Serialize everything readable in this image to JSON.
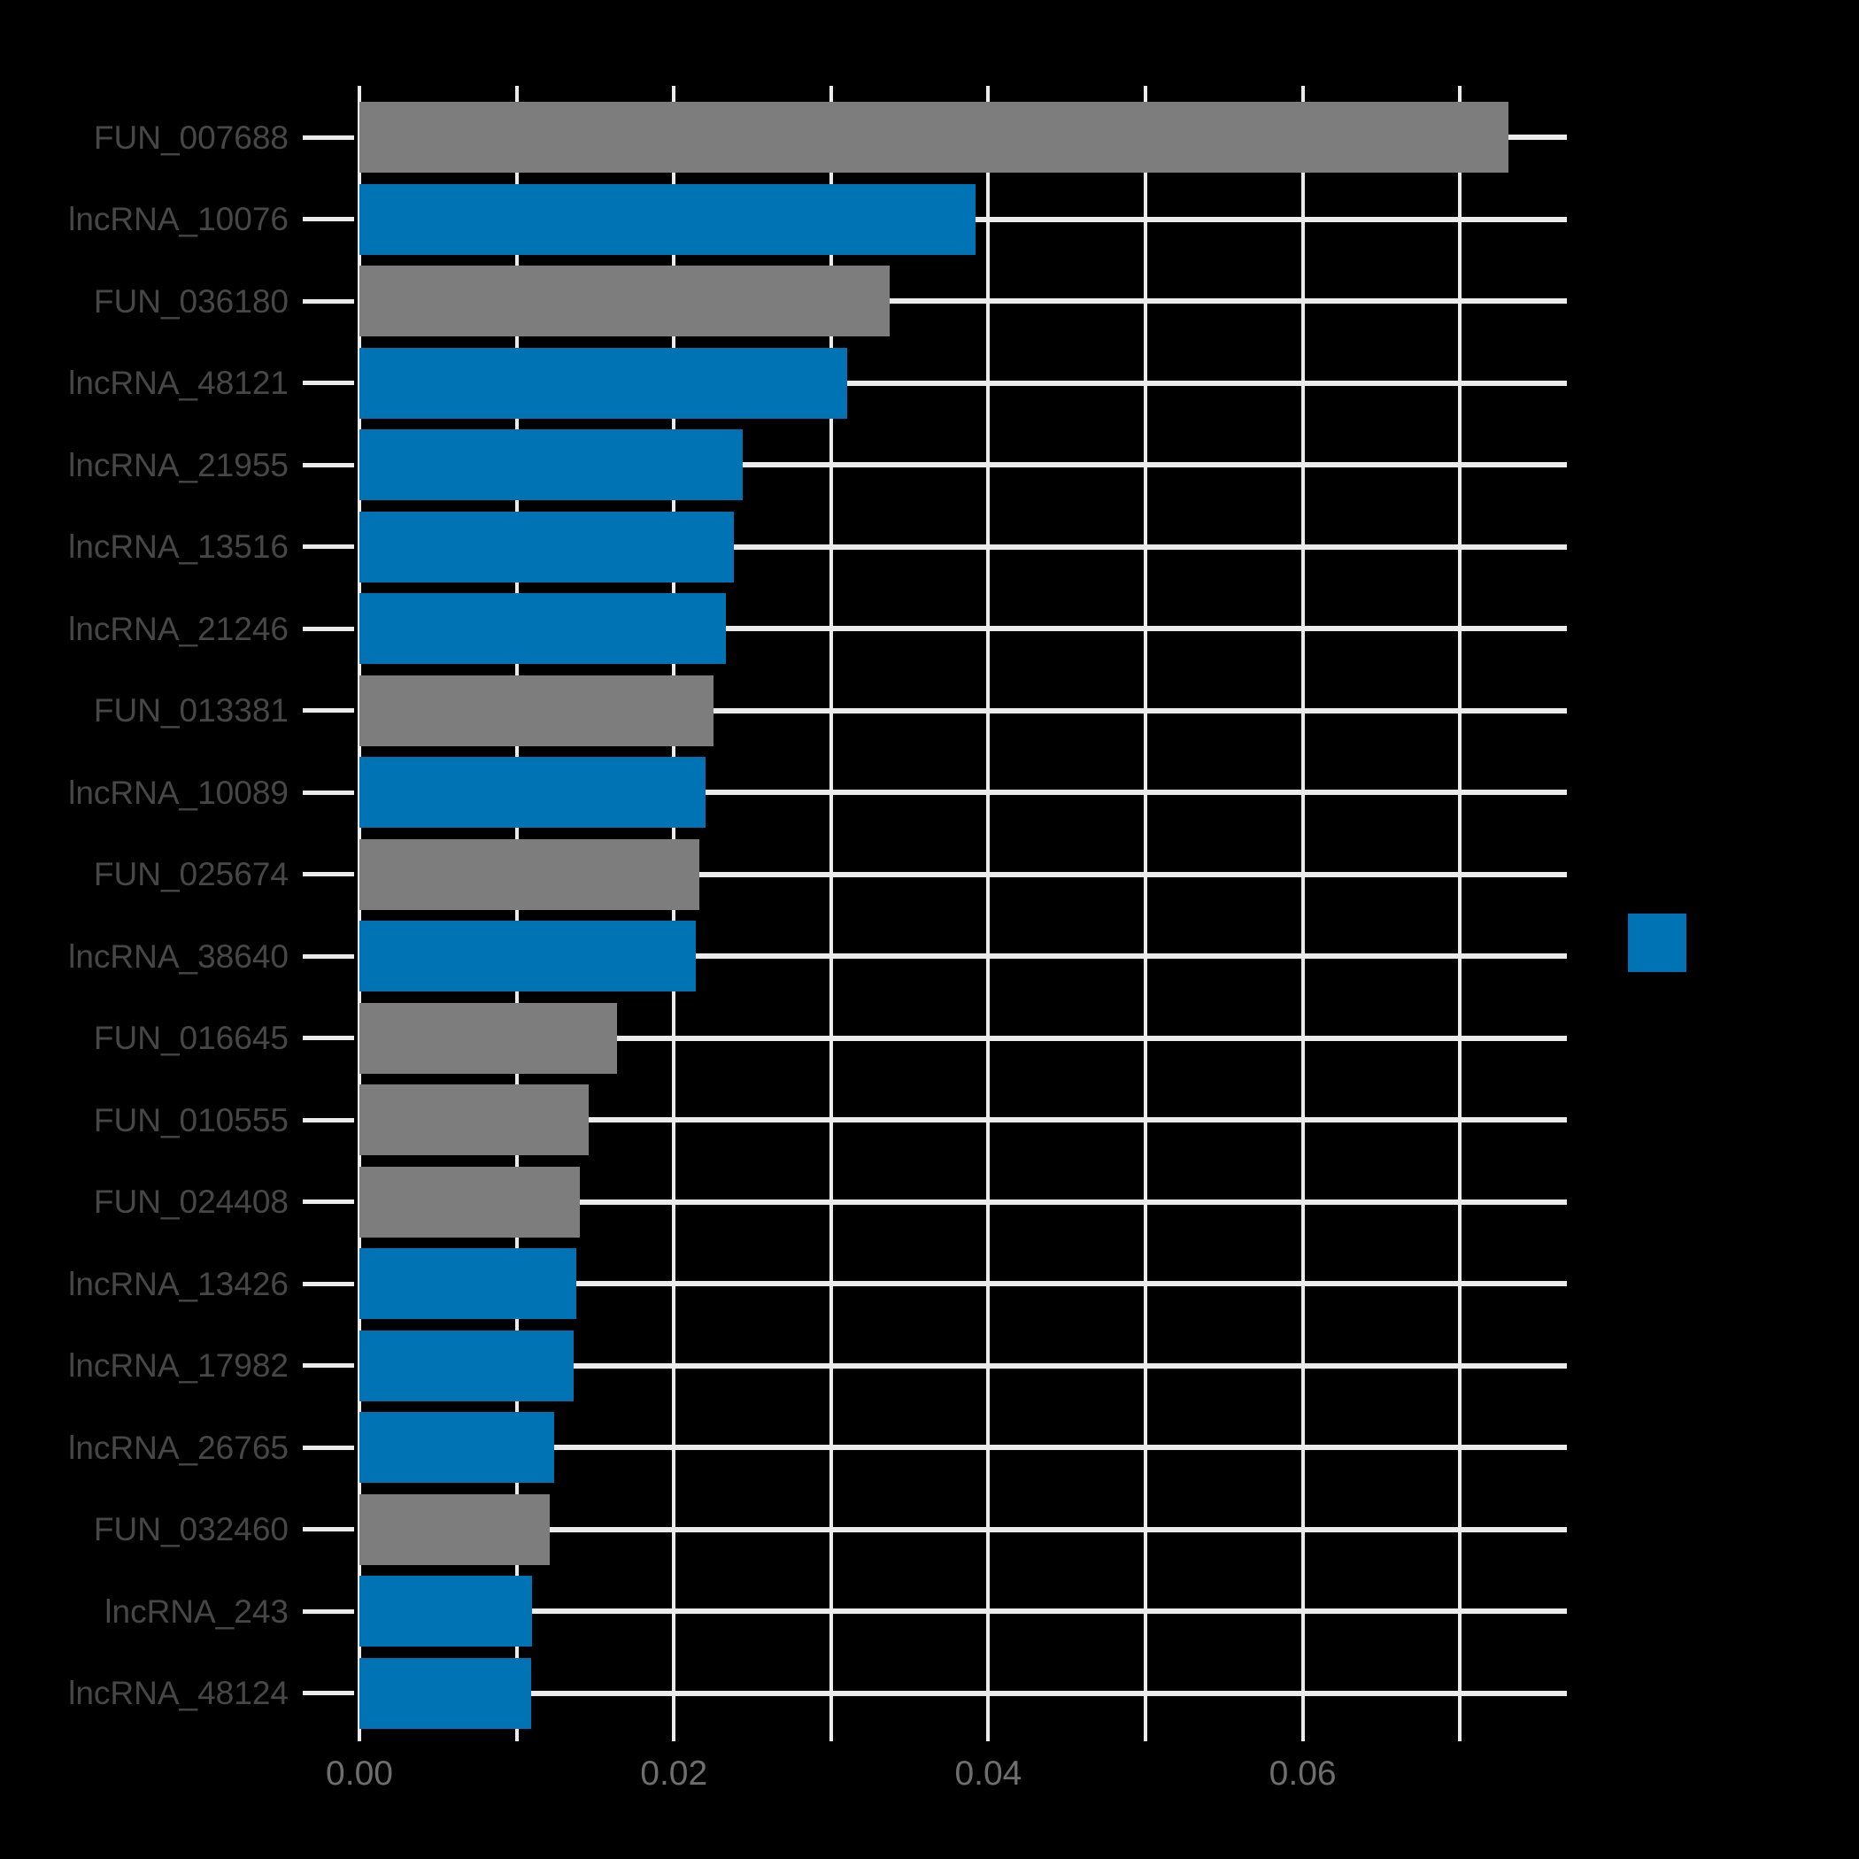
{
  "chart_data": {
    "type": "bar",
    "orientation": "horizontal",
    "title": "",
    "xlabel": "",
    "ylabel": "",
    "xlim": [
      0,
      0.0768
    ],
    "x_gridline_values": [
      0,
      0.01,
      0.02,
      0.03,
      0.04,
      0.05,
      0.06,
      0.07
    ],
    "x_tick_values": [
      0,
      0.02,
      0.04,
      0.06
    ],
    "x_tick_labels": [
      "0.00",
      "0.02",
      "0.04",
      "0.06"
    ],
    "grid": true,
    "legend": {
      "position": "right-center",
      "entries": [
        {
          "label": "",
          "color_key": "blue"
        }
      ]
    },
    "palette": {
      "blue": "#0073B4",
      "gray": "#7D7D7D"
    },
    "colors": {
      "background": "#000000",
      "grid": "#EBEBEB",
      "y_label_text": "#474747",
      "x_label_text": "#6E6E6E"
    },
    "categories": [
      "FUN_007688",
      "lncRNA_10076",
      "FUN_036180",
      "lncRNA_48121",
      "lncRNA_21955",
      "lncRNA_13516",
      "lncRNA_21246",
      "FUN_013381",
      "lncRNA_10089",
      "FUN_025674",
      "lncRNA_38640",
      "FUN_016645",
      "FUN_010555",
      "FUN_024408",
      "lncRNA_13426",
      "lncRNA_17982",
      "lncRNA_26765",
      "FUN_032460",
      "lncRNA_243",
      "lncRNA_48124"
    ],
    "values": [
      0.0731,
      0.0392,
      0.0337,
      0.031,
      0.0244,
      0.0238,
      0.0233,
      0.0225,
      0.022,
      0.0216,
      0.0214,
      0.0164,
      0.0146,
      0.014,
      0.0138,
      0.0136,
      0.0124,
      0.0121,
      0.011,
      0.0109
    ],
    "items": [
      {
        "label": "FUN_007688",
        "value": 0.0731,
        "color_key": "gray"
      },
      {
        "label": "lncRNA_10076",
        "value": 0.0392,
        "color_key": "blue"
      },
      {
        "label": "FUN_036180",
        "value": 0.0337,
        "color_key": "gray"
      },
      {
        "label": "lncRNA_48121",
        "value": 0.031,
        "color_key": "blue"
      },
      {
        "label": "lncRNA_21955",
        "value": 0.0244,
        "color_key": "blue"
      },
      {
        "label": "lncRNA_13516",
        "value": 0.0238,
        "color_key": "blue"
      },
      {
        "label": "lncRNA_21246",
        "value": 0.0233,
        "color_key": "blue"
      },
      {
        "label": "FUN_013381",
        "value": 0.0225,
        "color_key": "gray"
      },
      {
        "label": "lncRNA_10089",
        "value": 0.022,
        "color_key": "blue"
      },
      {
        "label": "FUN_025674",
        "value": 0.0216,
        "color_key": "gray"
      },
      {
        "label": "lncRNA_38640",
        "value": 0.0214,
        "color_key": "blue"
      },
      {
        "label": "FUN_016645",
        "value": 0.0164,
        "color_key": "gray"
      },
      {
        "label": "FUN_010555",
        "value": 0.0146,
        "color_key": "gray"
      },
      {
        "label": "FUN_024408",
        "value": 0.014,
        "color_key": "gray"
      },
      {
        "label": "lncRNA_13426",
        "value": 0.0138,
        "color_key": "blue"
      },
      {
        "label": "lncRNA_17982",
        "value": 0.0136,
        "color_key": "blue"
      },
      {
        "label": "lncRNA_26765",
        "value": 0.0124,
        "color_key": "blue"
      },
      {
        "label": "FUN_032460",
        "value": 0.0121,
        "color_key": "gray"
      },
      {
        "label": "lncRNA_243",
        "value": 0.011,
        "color_key": "blue"
      },
      {
        "label": "lncRNA_48124",
        "value": 0.0109,
        "color_key": "blue"
      }
    ]
  }
}
